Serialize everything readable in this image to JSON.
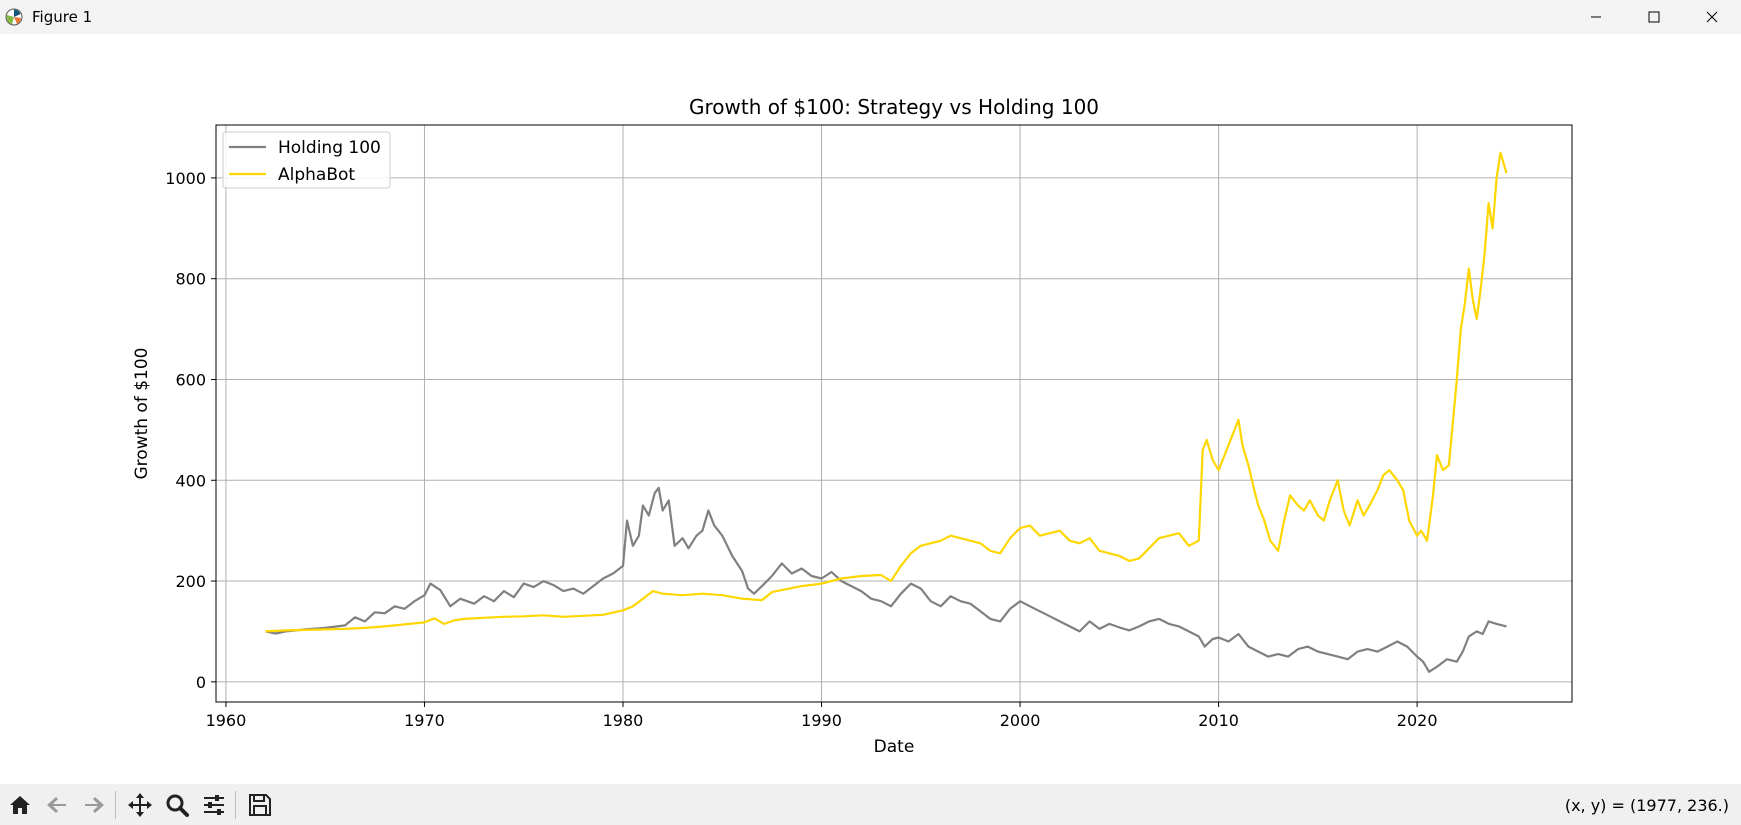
{
  "window": {
    "title": "Figure 1"
  },
  "toolbar": {
    "buttons": [
      "home-icon",
      "back-icon",
      "forward-icon",
      "pan-icon",
      "zoom-icon",
      "configure-icon",
      "save-icon"
    ],
    "coords": "(x, y) = (1977, 236.)"
  },
  "chart_data": {
    "type": "line",
    "title": "Growth of $100: Strategy vs Holding 100",
    "xlabel": "Date",
    "ylabel": "Growth of $100",
    "xlim": [
      1959.5,
      2027.8
    ],
    "ylim": [
      -40,
      1105
    ],
    "xticks": [
      1960,
      1970,
      1980,
      1990,
      2000,
      2010,
      2020
    ],
    "yticks": [
      0,
      200,
      400,
      600,
      800,
      1000
    ],
    "grid": true,
    "legend": "top-left",
    "series": [
      {
        "name": "Holding 100",
        "color": "#808080",
        "x": [
          1962.0,
          1962.5,
          1963.0,
          1964.0,
          1965.0,
          1966.0,
          1966.5,
          1967.0,
          1967.5,
          1968.0,
          1968.5,
          1969.0,
          1969.5,
          1970.0,
          1970.3,
          1970.8,
          1971.3,
          1971.8,
          1972.5,
          1973.0,
          1973.5,
          1974.0,
          1974.5,
          1975.0,
          1975.5,
          1976.0,
          1976.5,
          1977.0,
          1977.5,
          1978.0,
          1978.5,
          1979.0,
          1979.5,
          1980.0,
          1980.2,
          1980.5,
          1980.8,
          1981.0,
          1981.3,
          1981.6,
          1981.8,
          1982.0,
          1982.3,
          1982.6,
          1983.0,
          1983.3,
          1983.7,
          1984.0,
          1984.3,
          1984.6,
          1985.0,
          1985.5,
          1986.0,
          1986.3,
          1986.6,
          1987.0,
          1987.5,
          1988.0,
          1988.5,
          1989.0,
          1989.5,
          1990.0,
          1990.5,
          1991.0,
          1991.5,
          1992.0,
          1992.5,
          1993.0,
          1993.5,
          1994.0,
          1994.5,
          1995.0,
          1995.5,
          1996.0,
          1996.5,
          1997.0,
          1997.5,
          1998.0,
          1998.5,
          1999.0,
          1999.5,
          2000.0,
          2000.5,
          2001.0,
          2001.5,
          2002.0,
          2002.5,
          2003.0,
          2003.5,
          2004.0,
          2004.5,
          2005.0,
          2005.5,
          2006.0,
          2006.5,
          2007.0,
          2007.5,
          2008.0,
          2008.5,
          2009.0,
          2009.3,
          2009.7,
          2010.0,
          2010.5,
          2011.0,
          2011.5,
          2012.0,
          2012.5,
          2013.0,
          2013.5,
          2014.0,
          2014.5,
          2015.0,
          2015.5,
          2016.0,
          2016.5,
          2017.0,
          2017.5,
          2018.0,
          2018.5,
          2019.0,
          2019.5,
          2020.0,
          2020.3,
          2020.6,
          2021.0,
          2021.5,
          2022.0,
          2022.3,
          2022.6,
          2023.0,
          2023.3,
          2023.6,
          2024.0,
          2024.5
        ],
        "y": [
          100,
          96,
          100,
          104,
          107,
          112,
          128,
          120,
          138,
          136,
          150,
          145,
          160,
          172,
          195,
          182,
          150,
          165,
          155,
          170,
          160,
          180,
          168,
          195,
          188,
          200,
          192,
          180,
          185,
          175,
          190,
          205,
          215,
          230,
          320,
          270,
          290,
          350,
          330,
          375,
          385,
          340,
          360,
          270,
          285,
          265,
          290,
          300,
          340,
          310,
          290,
          250,
          220,
          185,
          175,
          190,
          210,
          235,
          215,
          225,
          210,
          205,
          218,
          200,
          190,
          180,
          165,
          160,
          150,
          175,
          195,
          185,
          160,
          150,
          170,
          160,
          155,
          140,
          125,
          120,
          145,
          160,
          150,
          140,
          130,
          120,
          110,
          100,
          120,
          105,
          115,
          108,
          102,
          110,
          120,
          125,
          115,
          110,
          100,
          90,
          70,
          85,
          88,
          80,
          95,
          70,
          60,
          50,
          55,
          50,
          65,
          70,
          60,
          55,
          50,
          45,
          60,
          65,
          60,
          70,
          80,
          70,
          50,
          40,
          20,
          30,
          45,
          40,
          60,
          90,
          100,
          95,
          120,
          115,
          110
        ]
      },
      {
        "name": "AlphaBot",
        "color": "#ffd700",
        "x": [
          1962.0,
          1963.0,
          1964.0,
          1965.0,
          1966.0,
          1967.0,
          1968.0,
          1969.0,
          1970.0,
          1970.5,
          1971.0,
          1971.5,
          1972.0,
          1973.0,
          1974.0,
          1975.0,
          1976.0,
          1977.0,
          1978.0,
          1979.0,
          1980.0,
          1980.5,
          1981.0,
          1981.5,
          1982.0,
          1983.0,
          1984.0,
          1985.0,
          1986.0,
          1987.0,
          1987.5,
          1988.0,
          1989.0,
          1990.0,
          1991.0,
          1992.0,
          1993.0,
          1993.5,
          1994.0,
          1994.5,
          1995.0,
          1996.0,
          1996.5,
          1997.0,
          1998.0,
          1998.5,
          1999.0,
          1999.5,
          2000.0,
          2000.5,
          2001.0,
          2001.5,
          2002.0,
          2002.5,
          2003.0,
          2003.5,
          2004.0,
          2004.5,
          2005.0,
          2005.5,
          2006.0,
          2006.5,
          2007.0,
          2007.5,
          2008.0,
          2008.5,
          2009.0,
          2009.2,
          2009.4,
          2009.7,
          2010.0,
          2010.3,
          2010.6,
          2011.0,
          2011.2,
          2011.5,
          2011.8,
          2012.0,
          2012.3,
          2012.6,
          2013.0,
          2013.3,
          2013.6,
          2014.0,
          2014.3,
          2014.6,
          2015.0,
          2015.3,
          2015.6,
          2016.0,
          2016.3,
          2016.6,
          2017.0,
          2017.3,
          2017.6,
          2018.0,
          2018.3,
          2018.6,
          2019.0,
          2019.3,
          2019.6,
          2020.0,
          2020.2,
          2020.5,
          2020.8,
          2021.0,
          2021.3,
          2021.6,
          2022.0,
          2022.2,
          2022.4,
          2022.6,
          2022.8,
          2023.0,
          2023.2,
          2023.4,
          2023.6,
          2023.8,
          2024.0,
          2024.2,
          2024.5
        ],
        "y": [
          100,
          102,
          103,
          104,
          105,
          107,
          110,
          114,
          118,
          126,
          115,
          122,
          125,
          127,
          129,
          130,
          132,
          129,
          131,
          133,
          142,
          150,
          165,
          180,
          175,
          172,
          175,
          172,
          165,
          162,
          178,
          182,
          190,
          195,
          205,
          210,
          212,
          200,
          230,
          255,
          270,
          280,
          290,
          285,
          275,
          260,
          255,
          285,
          305,
          310,
          290,
          295,
          300,
          280,
          275,
          285,
          260,
          255,
          250,
          240,
          245,
          265,
          285,
          290,
          295,
          270,
          280,
          460,
          480,
          440,
          420,
          450,
          480,
          520,
          470,
          430,
          380,
          350,
          320,
          280,
          260,
          320,
          370,
          350,
          340,
          360,
          330,
          320,
          360,
          400,
          340,
          310,
          360,
          330,
          350,
          380,
          410,
          420,
          400,
          380,
          320,
          290,
          300,
          280,
          370,
          450,
          420,
          430,
          600,
          700,
          750,
          820,
          760,
          720,
          780,
          850,
          950,
          900,
          1000,
          1050,
          1010
        ]
      }
    ]
  }
}
